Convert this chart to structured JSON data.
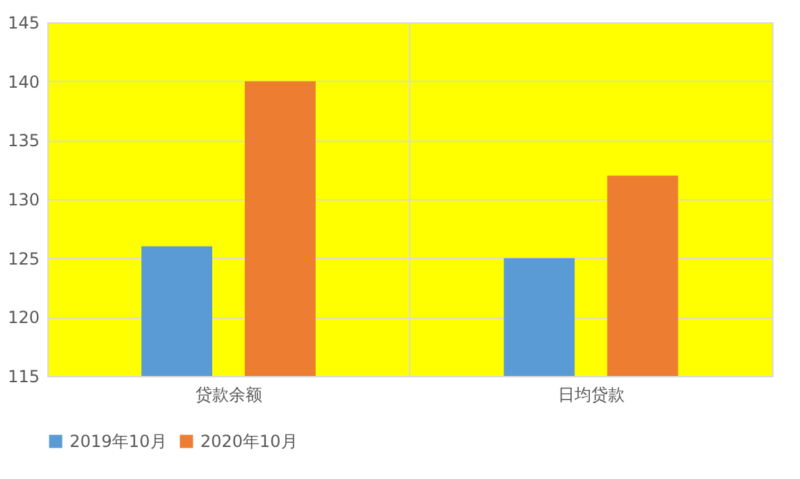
{
  "chart_data": {
    "type": "bar",
    "categories": [
      "贷款余额",
      "日均贷款"
    ],
    "series": [
      {
        "name": "2019年10月",
        "color": "#5b9bd5",
        "values": [
          126,
          125
        ]
      },
      {
        "name": "2020年10月",
        "color": "#ed7d31",
        "values": [
          140,
          132
        ]
      }
    ],
    "ylim": [
      115,
      145
    ],
    "yticks": [
      115,
      120,
      125,
      130,
      135,
      140,
      145
    ],
    "grid": true,
    "legend": "bottom"
  }
}
